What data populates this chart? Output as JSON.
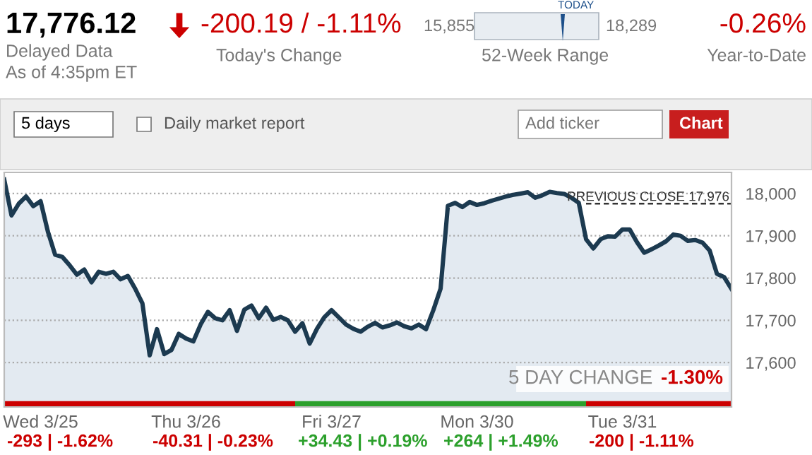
{
  "chart_data": {
    "type": "area",
    "categories": [
      null,
      null,
      null,
      null,
      null,
      "Wed 3/25",
      null,
      null,
      null,
      null,
      null,
      null,
      null,
      null,
      null,
      null,
      null,
      null,
      null,
      null,
      null,
      null,
      null,
      null,
      null,
      "Thu 3/26",
      null,
      null,
      null,
      null,
      null,
      null,
      null,
      null,
      null,
      null,
      null,
      null,
      null,
      null,
      null,
      null,
      null,
      null,
      null,
      "Fri 3/27",
      null,
      null,
      null,
      null,
      null,
      null,
      null,
      null,
      null,
      null,
      null,
      null,
      null,
      null,
      null,
      null,
      null,
      null,
      null,
      "Mon 3/30",
      null,
      null,
      null,
      null,
      null,
      null,
      null,
      null,
      null,
      null,
      null,
      null,
      null,
      null,
      null,
      null,
      null,
      null,
      null,
      "Tue 3/31",
      null,
      null,
      null,
      null,
      null,
      null,
      null,
      null,
      null,
      null,
      null,
      null,
      null,
      null,
      null
    ],
    "series": [
      {
        "color": "#1c3a50",
        "values": [
          18033,
          17948,
          17976,
          17993,
          17970,
          17982,
          17910,
          17855,
          17850,
          17830,
          17808,
          17820,
          17790,
          17815,
          17810,
          17815,
          17797,
          17805,
          17775,
          17740,
          17617,
          17679,
          17620,
          17630,
          17668,
          17657,
          17650,
          17690,
          17720,
          17705,
          17700,
          17724,
          17675,
          17725,
          17735,
          17705,
          17730,
          17701,
          17708,
          17700,
          17673,
          17693,
          17645,
          17680,
          17707,
          17724,
          17707,
          17690,
          17680,
          17673,
          17685,
          17694,
          17683,
          17688,
          17695,
          17686,
          17681,
          17690,
          17679,
          17724,
          17775,
          17971,
          17978,
          17968,
          17980,
          17973,
          17977,
          17983,
          17988,
          17993,
          17997,
          18000,
          18003,
          17990,
          17996,
          18004,
          18001,
          17999,
          17990,
          17978,
          17892,
          17870,
          17892,
          17899,
          17898,
          17915,
          17915,
          17885,
          17860,
          17868,
          17877,
          17887,
          17903,
          17900,
          17888,
          17890,
          17884,
          17865,
          17810,
          17802,
          17774
        ]
      }
    ],
    "ylim": [
      17495,
      18050
    ],
    "yticks": [
      {
        "value": 17600,
        "label": "17,600"
      },
      {
        "value": 17700,
        "label": "17,700"
      },
      {
        "value": 17800,
        "label": "17,800"
      },
      {
        "value": 17900,
        "label": "17,900"
      },
      {
        "value": 18000,
        "label": "18,000"
      }
    ],
    "grid": "y",
    "ref_lines": [
      {
        "axis": "y",
        "value": 17976,
        "label": "PREVIOUS CLOSE 17,976",
        "line_style": "dashed",
        "color": "#333333"
      }
    ],
    "annotations": [
      "17,776.12",
      "Delayed Data",
      "As of 4:35pm ET",
      "-200.19 / -1.11%",
      "Today's Change",
      "15,855",
      "18,289",
      "TODAY",
      "52-Week Range",
      "-0.26%",
      "Year-to-Date",
      "5 days",
      "Daily market report",
      "Add ticker",
      "Chart",
      "5 DAY CHANGE",
      "-1.30%",
      "-293 | -1.62%",
      "-40.31 | -0.23%",
      "+34.43 | +0.19%",
      "+264 | +1.49%",
      "-200 | -1.11%"
    ]
  }
}
